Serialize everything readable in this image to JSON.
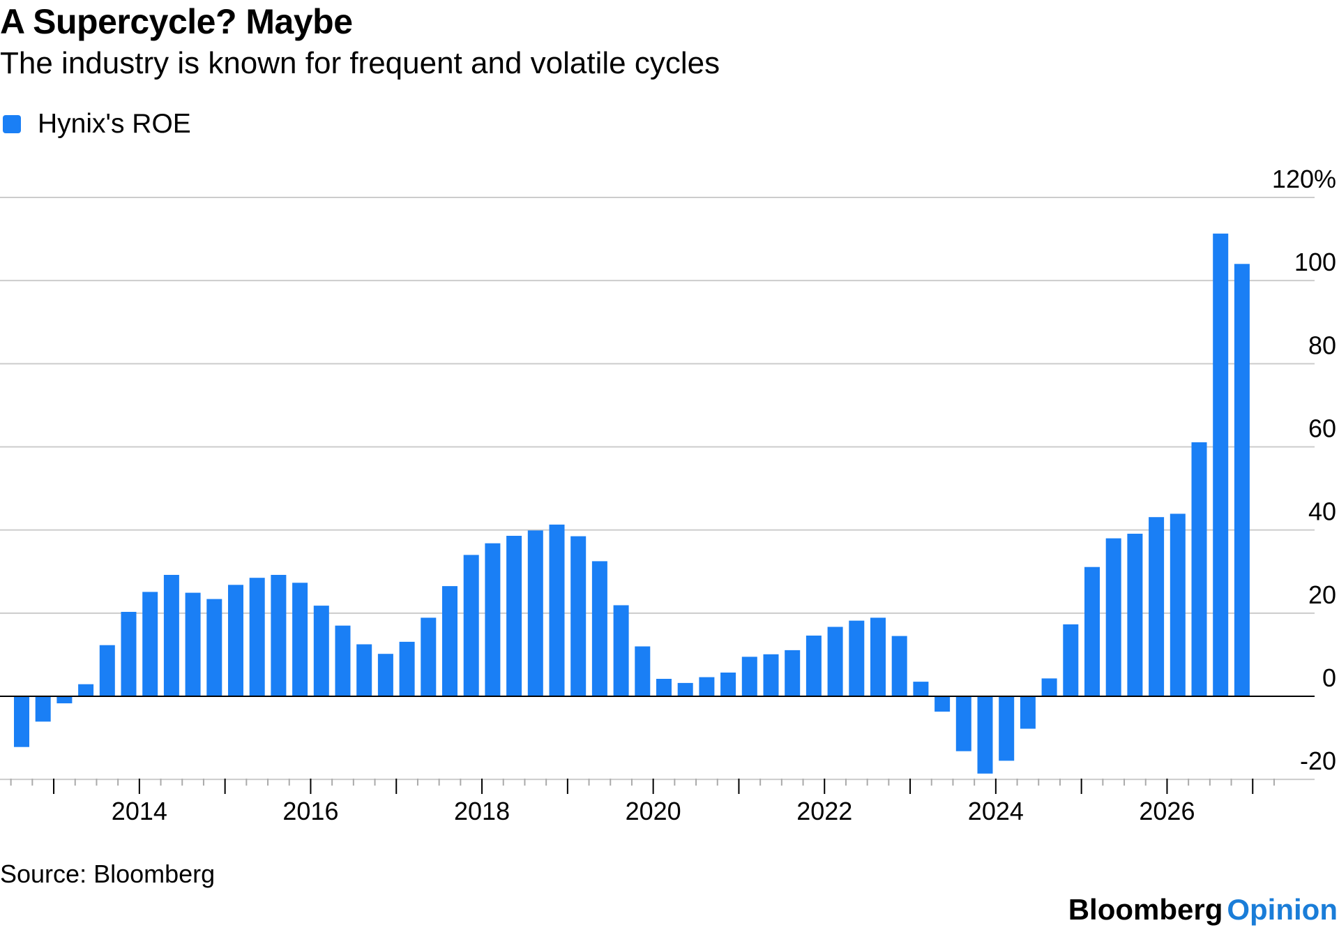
{
  "header": {
    "title": "A Supercycle? Maybe",
    "subtitle": "The industry is known for frequent and volatile cycles"
  },
  "legend": {
    "label": "Hynix's ROE",
    "color": "#1a7ff5"
  },
  "footer": {
    "source": "Source: Bloomberg",
    "brand_primary": "Bloomberg",
    "brand_secondary": "Opinion",
    "brand_secondary_color": "#1a7dd8"
  },
  "chart_data": {
    "type": "bar",
    "series": [
      {
        "name": "Hynix's ROE",
        "color": "#1a7ff5",
        "x": [
          "2012-Q3",
          "2012-Q4",
          "2013-Q1",
          "2013-Q2",
          "2013-Q3",
          "2013-Q4",
          "2014-Q1",
          "2014-Q2",
          "2014-Q3",
          "2014-Q4",
          "2015-Q1",
          "2015-Q2",
          "2015-Q3",
          "2015-Q4",
          "2016-Q1",
          "2016-Q2",
          "2016-Q3",
          "2016-Q4",
          "2017-Q1",
          "2017-Q2",
          "2017-Q3",
          "2017-Q4",
          "2018-Q1",
          "2018-Q2",
          "2018-Q3",
          "2018-Q4",
          "2019-Q1",
          "2019-Q2",
          "2019-Q3",
          "2019-Q4",
          "2020-Q1",
          "2020-Q2",
          "2020-Q3",
          "2020-Q4",
          "2021-Q1",
          "2021-Q2",
          "2021-Q3",
          "2021-Q4",
          "2022-Q1",
          "2022-Q2",
          "2022-Q3",
          "2022-Q4",
          "2023-Q1",
          "2023-Q2",
          "2023-Q3",
          "2023-Q4",
          "2024-Q1",
          "2024-Q2",
          "2024-Q3",
          "2024-Q4",
          "2025-Q1",
          "2025-Q2",
          "2025-Q3",
          "2025-Q4",
          "2026-Q1",
          "2026-Q2",
          "2026-Q3",
          "2026-Q4"
        ],
        "values": [
          -12.2,
          -6.1,
          -1.7,
          2.9,
          12.3,
          20.3,
          25.1,
          29.2,
          24.9,
          23.4,
          26.8,
          28.5,
          29.2,
          27.3,
          21.8,
          17.0,
          12.5,
          10.2,
          13.1,
          18.9,
          26.5,
          34.0,
          36.8,
          38.6,
          39.9,
          41.3,
          38.5,
          32.5,
          21.9,
          12.0,
          4.2,
          3.2,
          4.6,
          5.7,
          9.5,
          10.1,
          11.1,
          14.6,
          16.7,
          18.2,
          18.9,
          14.5,
          3.5,
          -3.7,
          -13.2,
          -18.6,
          -15.5,
          -7.8,
          4.3,
          17.3,
          31.1,
          38.0,
          39.1,
          43.1,
          43.9,
          61.1,
          111.3,
          104.0
        ]
      }
    ],
    "x_ticks": [
      "2014",
      "2016",
      "2018",
      "2020",
      "2022",
      "2024",
      "2026"
    ],
    "y_ticks": [
      -20,
      0,
      20,
      40,
      60,
      80,
      100,
      120
    ],
    "y_tick_labels": [
      "-20",
      "0",
      "20",
      "40",
      "60",
      "80",
      "100",
      "120%"
    ],
    "ylim": [
      -20,
      120
    ],
    "xlim": [
      "2012-Q2",
      "2027-Q2"
    ],
    "grid": true,
    "y_axis_position": "right",
    "legend_position": "top-left"
  }
}
